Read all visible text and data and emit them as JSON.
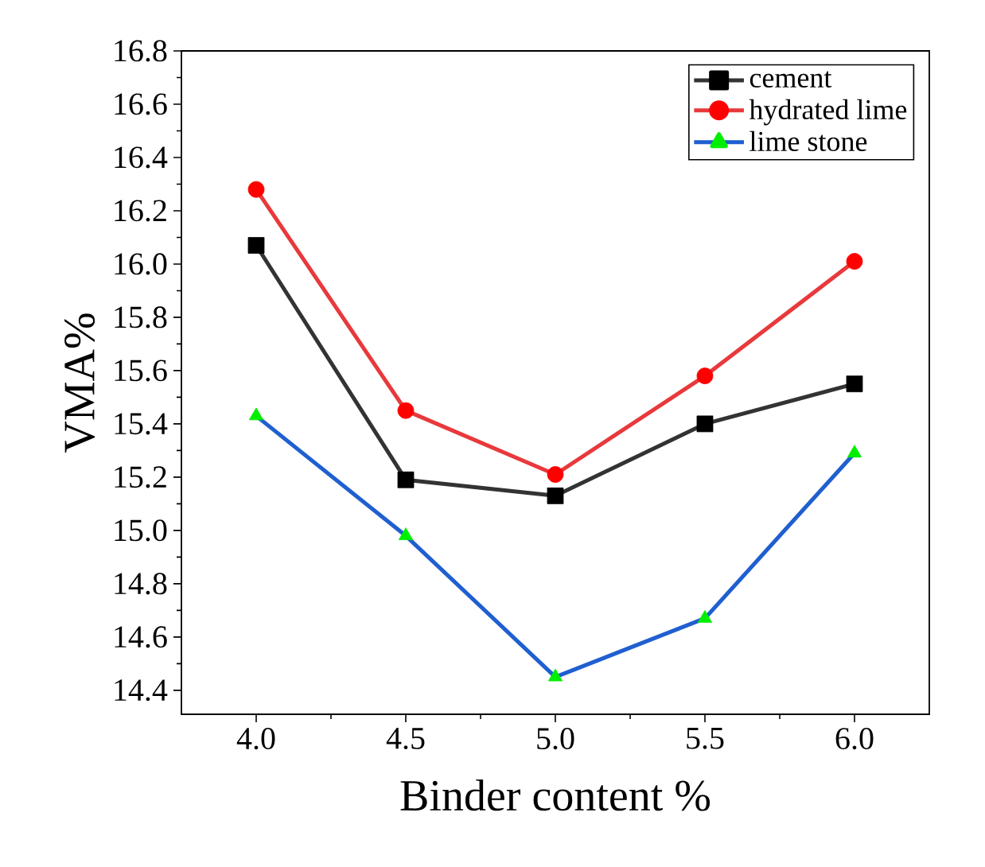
{
  "chart_data": {
    "type": "line",
    "xlabel": "Binder content %",
    "ylabel": "VMA%",
    "x": [
      4.0,
      4.5,
      5.0,
      5.5,
      6.0
    ],
    "xlim": [
      3.75,
      6.25
    ],
    "ylim": [
      14.31,
      16.8
    ],
    "xticks": [
      {
        "value": 4.0,
        "label": "4.0"
      },
      {
        "value": 4.5,
        "label": "4.5"
      },
      {
        "value": 5.0,
        "label": "5.0"
      },
      {
        "value": 5.5,
        "label": "5.5"
      },
      {
        "value": 6.0,
        "label": "6.0"
      }
    ],
    "yticks": [
      {
        "value": 14.4,
        "label": "14.4"
      },
      {
        "value": 14.6,
        "label": "14.6"
      },
      {
        "value": 14.8,
        "label": "14.8"
      },
      {
        "value": 15.0,
        "label": "15.0"
      },
      {
        "value": 15.2,
        "label": "15.2"
      },
      {
        "value": 15.4,
        "label": "15.4"
      },
      {
        "value": 15.6,
        "label": "15.6"
      },
      {
        "value": 15.8,
        "label": "15.8"
      },
      {
        "value": 16.0,
        "label": "16.0"
      },
      {
        "value": 16.2,
        "label": "16.2"
      },
      {
        "value": 16.4,
        "label": "16.4"
      },
      {
        "value": 16.6,
        "label": "16.6"
      },
      {
        "value": 16.8,
        "label": "16.8"
      }
    ],
    "legend": "top right",
    "line_style": "solid",
    "series": [
      {
        "name": "cement",
        "color": "#333333",
        "marker": "square",
        "colors": [
          "#000000",
          "#000000",
          "#000000",
          "#000000",
          "#000000"
        ],
        "values": [
          16.07,
          15.19,
          15.13,
          15.4,
          15.55
        ]
      },
      {
        "name": "hydrated lime",
        "color": "#e8393c",
        "marker": "circle",
        "colors": [
          "#ff0000",
          "#ff0000",
          "#ff0000",
          "#ff0000",
          "#ff0000"
        ],
        "values": [
          16.28,
          15.45,
          15.21,
          15.58,
          16.01
        ]
      },
      {
        "name": "lime stone",
        "color": "#1f5fd0",
        "marker": "triangle",
        "colors": [
          "#00ee00",
          "#00ee00",
          "#00ee00",
          "#00ee00",
          "#00ee00"
        ],
        "values": [
          15.43,
          14.98,
          14.45,
          14.67,
          15.29
        ]
      }
    ]
  }
}
